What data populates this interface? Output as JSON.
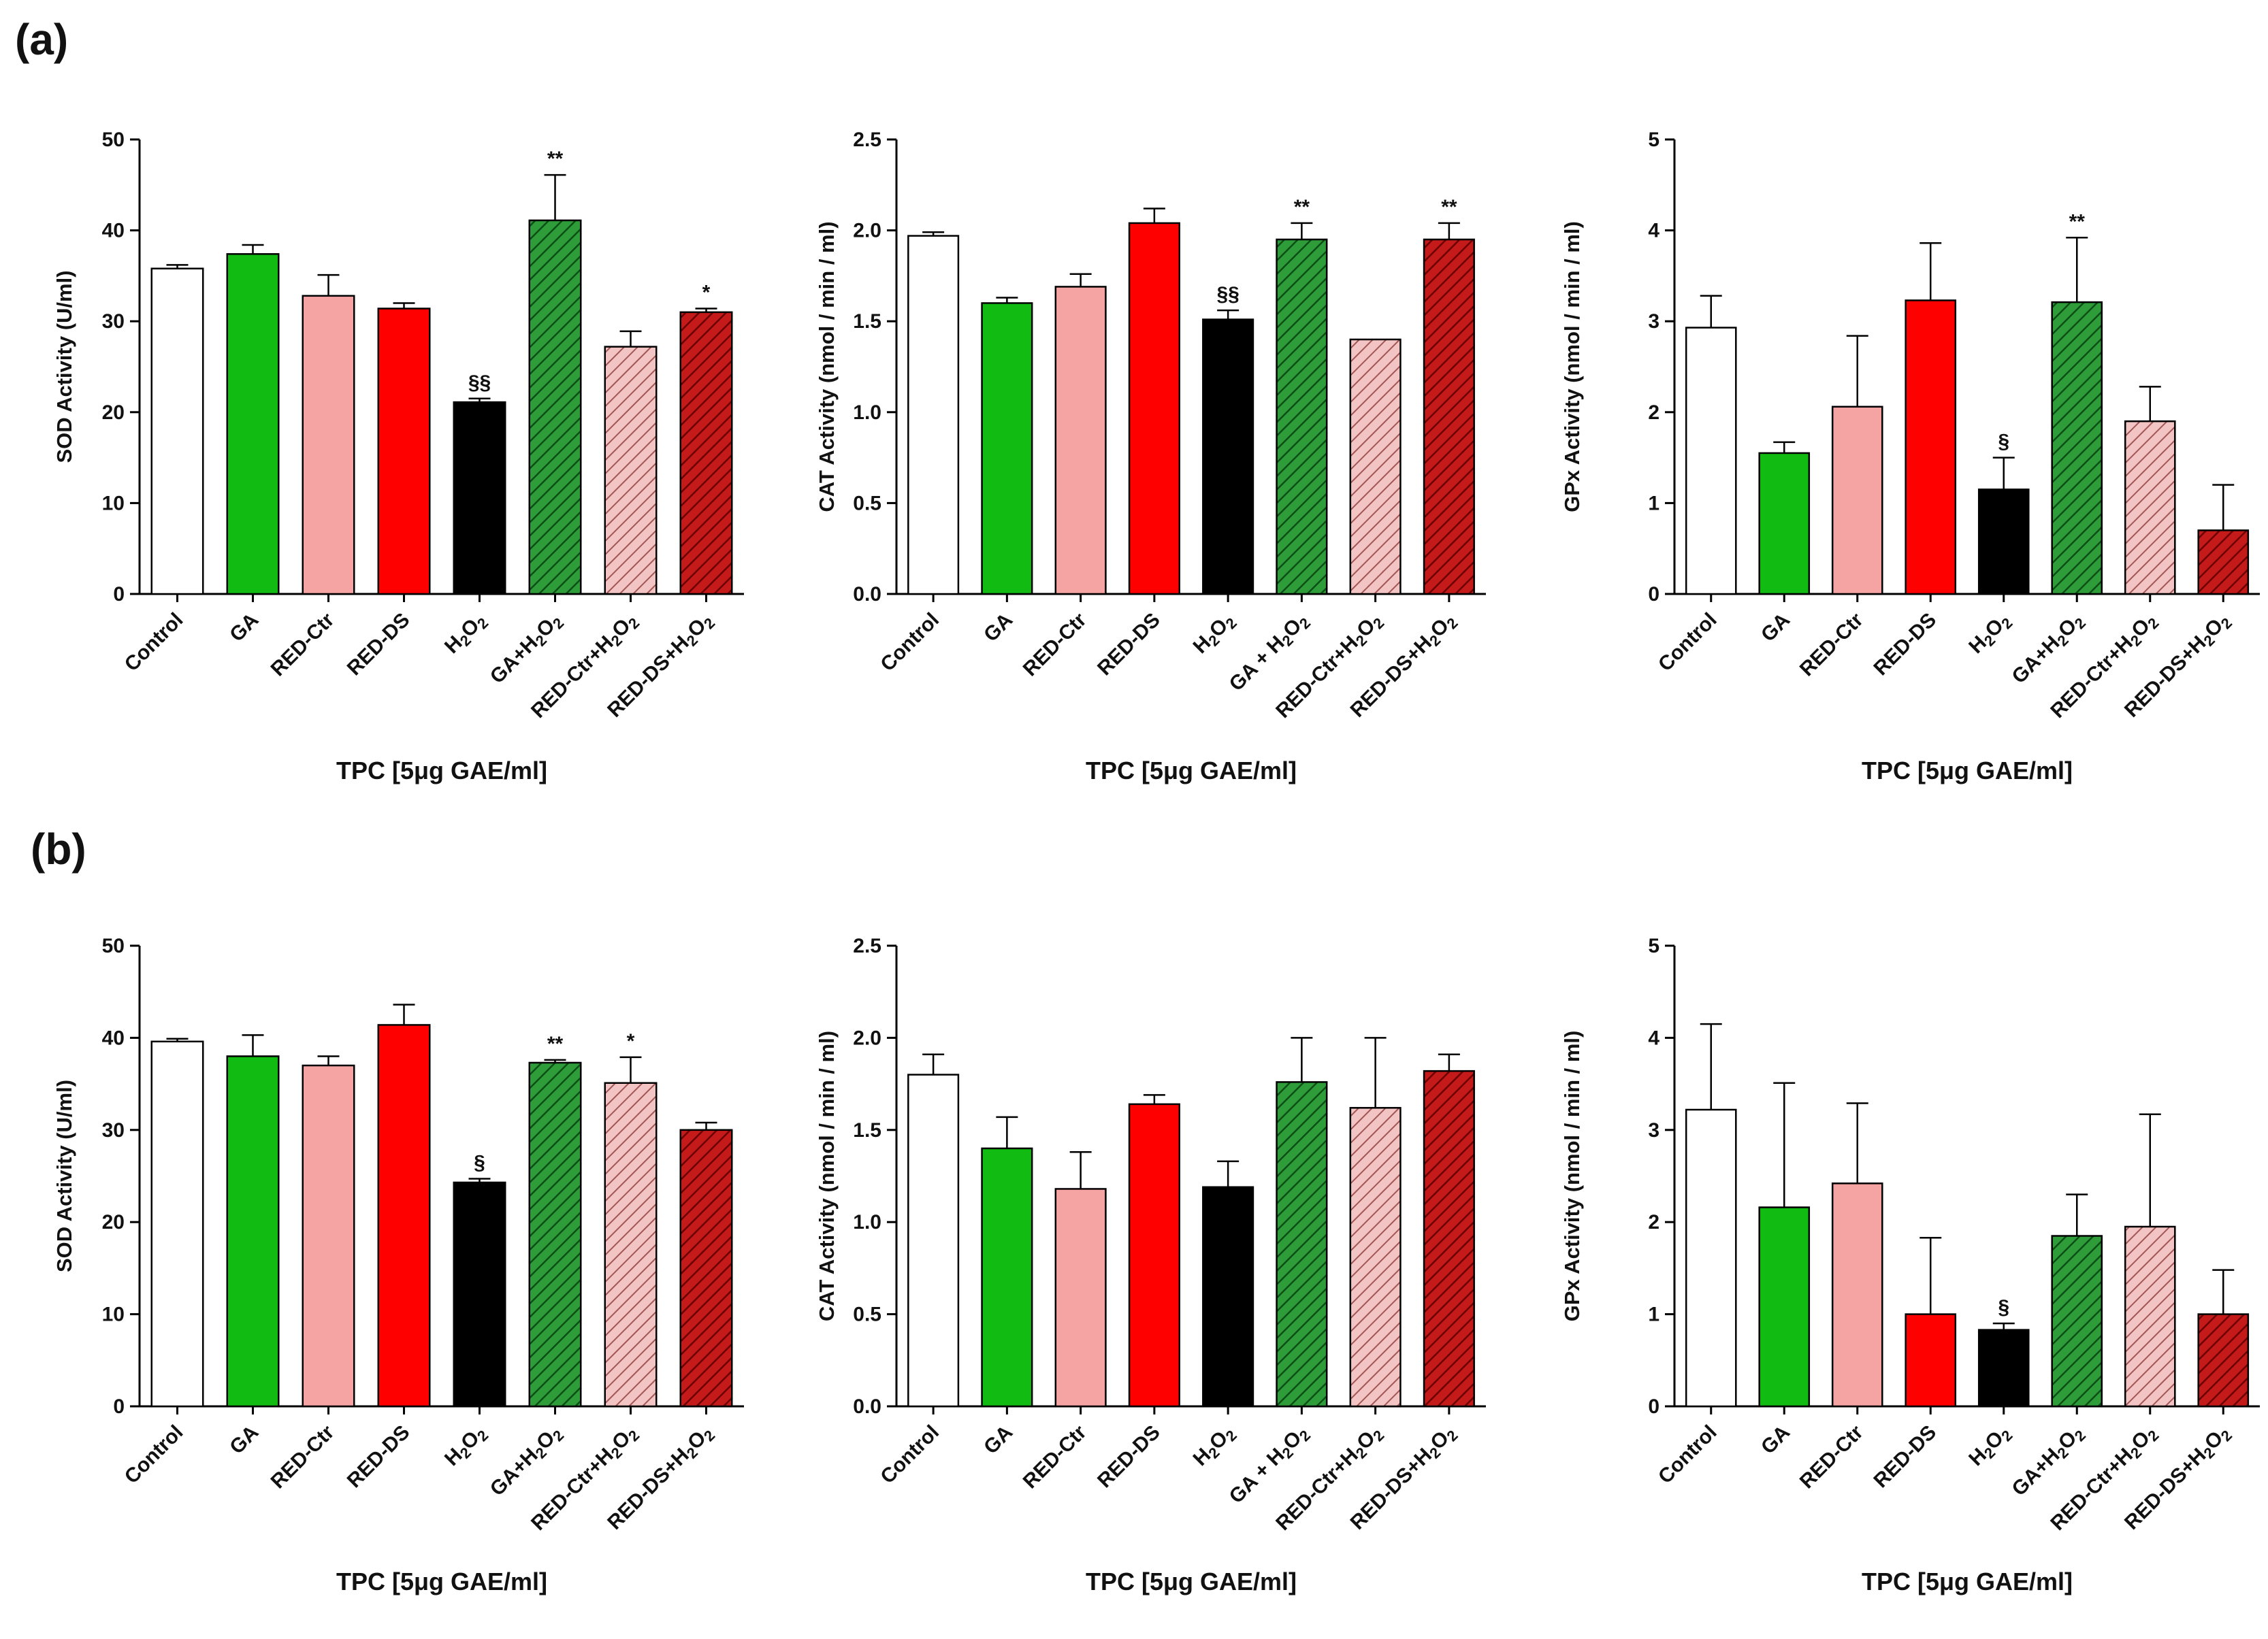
{
  "panel_labels": [
    "(a)",
    "(b)"
  ],
  "colors": {
    "white": "#ffffff",
    "green": "#11bb11",
    "pink": "#f5a3a3",
    "red": "#ff0000",
    "black": "#000000",
    "dark_green": "#1f8a2e",
    "dark_red": "#b20d0d",
    "hatch_pink": "#d69a9a"
  },
  "chart_data": [
    {
      "id": "a-sod",
      "type": "bar",
      "title": "",
      "row": "a",
      "col": 0,
      "ylabel": "SOD Activity (U/ml)",
      "xlabel": "TPC [5μg GAE/ml]",
      "ylim": [
        0,
        50
      ],
      "yticks": [
        0,
        10,
        20,
        30,
        40,
        50
      ],
      "categories": [
        "Control",
        "GA",
        "RED-Ctr",
        "RED-DS",
        "H2O2",
        "GA+H2O2",
        "RED-Ctr+H2O2",
        "RED-DS+H2O2"
      ],
      "values": [
        35.8,
        37.4,
        32.8,
        31.4,
        21.1,
        41.1,
        27.2,
        31.0
      ],
      "errors": [
        0.4,
        1.0,
        2.3,
        0.6,
        0.4,
        5.0,
        1.7,
        0.4
      ],
      "styles": [
        "white",
        "green",
        "pink",
        "red",
        "black",
        "dark_green",
        "hatch_pink",
        "dark_red"
      ],
      "annotations": [
        "",
        "",
        "",
        "",
        "§§",
        "**",
        "",
        "*"
      ]
    },
    {
      "id": "a-cat",
      "type": "bar",
      "row": "a",
      "col": 1,
      "ylabel": "CAT Activity (nmol / min / ml)",
      "xlabel": "TPC [5μg GAE/ml]",
      "ylim": [
        0,
        2.5
      ],
      "yticks": [
        0.0,
        0.5,
        1.0,
        1.5,
        2.0,
        2.5
      ],
      "ytick_labels": [
        "0.0",
        "0.5",
        "1.0",
        "1.5",
        "2.0",
        "2.5"
      ],
      "categories": [
        "Control",
        "GA",
        "RED-Ctr",
        "RED-DS",
        "H2O2",
        "GA + H2O2",
        "RED-Ctr+H2O2",
        "RED-DS+H2O2"
      ],
      "values": [
        1.97,
        1.6,
        1.69,
        2.04,
        1.51,
        1.95,
        1.4,
        1.95
      ],
      "errors": [
        0.02,
        0.03,
        0.07,
        0.08,
        0.05,
        0.09,
        0.0,
        0.09
      ],
      "styles": [
        "white",
        "green",
        "pink",
        "red",
        "black",
        "dark_green",
        "hatch_pink",
        "dark_red"
      ],
      "annotations": [
        "",
        "",
        "",
        "",
        "§§",
        "**",
        "",
        "**"
      ]
    },
    {
      "id": "a-gpx",
      "type": "bar",
      "row": "a",
      "col": 2,
      "ylabel": "GPx Activity (nmol / min / ml)",
      "xlabel": "TPC [5μg GAE/ml]",
      "ylim": [
        0,
        5
      ],
      "yticks": [
        0,
        1,
        2,
        3,
        4,
        5
      ],
      "categories": [
        "Control",
        "GA",
        "RED-Ctr",
        "RED-DS",
        "H2O2",
        "GA+H2O2",
        "RED-Ctr+H2O2",
        "RED-DS+H2O2"
      ],
      "values": [
        2.93,
        1.55,
        2.06,
        3.23,
        1.15,
        3.21,
        1.9,
        0.7
      ],
      "errors": [
        0.35,
        0.12,
        0.78,
        0.63,
        0.35,
        0.71,
        0.38,
        0.5
      ],
      "styles": [
        "white",
        "green",
        "pink",
        "red",
        "black",
        "dark_green",
        "hatch_pink",
        "dark_red"
      ],
      "annotations": [
        "",
        "",
        "",
        "",
        "§",
        "**",
        "",
        ""
      ]
    },
    {
      "id": "b-sod",
      "type": "bar",
      "row": "b",
      "col": 0,
      "ylabel": "SOD Activity (U/ml)",
      "xlabel": "TPC [5μg GAE/ml]",
      "ylim": [
        0,
        50
      ],
      "yticks": [
        0,
        10,
        20,
        30,
        40,
        50
      ],
      "categories": [
        "Control",
        "GA",
        "RED-Ctr",
        "RED-DS",
        "H2O2",
        "GA+H2O2",
        "RED-Ctr+H2O2",
        "RED-DS+H2O2"
      ],
      "values": [
        39.6,
        38.0,
        37.0,
        41.4,
        24.3,
        37.3,
        35.1,
        30.0
      ],
      "errors": [
        0.3,
        2.3,
        1.0,
        2.2,
        0.4,
        0.3,
        2.8,
        0.8
      ],
      "styles": [
        "white",
        "green",
        "pink",
        "red",
        "black",
        "dark_green",
        "hatch_pink",
        "dark_red"
      ],
      "annotations": [
        "",
        "",
        "",
        "",
        "§",
        "**",
        "*",
        ""
      ]
    },
    {
      "id": "b-cat",
      "type": "bar",
      "row": "b",
      "col": 1,
      "ylabel": "CAT Activity (nmol / min / ml)",
      "xlabel": "TPC [5μg GAE/ml]",
      "ylim": [
        0,
        2.5
      ],
      "yticks": [
        0.0,
        0.5,
        1.0,
        1.5,
        2.0,
        2.5
      ],
      "ytick_labels": [
        "0.0",
        "0.5",
        "1.0",
        "1.5",
        "2.0",
        "2.5"
      ],
      "categories": [
        "Control",
        "GA",
        "RED-Ctr",
        "RED-DS",
        "H2O2",
        "GA + H2O2",
        "RED-Ctr+H2O2",
        "RED-DS+H2O2"
      ],
      "values": [
        1.8,
        1.4,
        1.18,
        1.64,
        1.19,
        1.76,
        1.62,
        1.82
      ],
      "errors": [
        0.11,
        0.17,
        0.2,
        0.05,
        0.14,
        0.24,
        0.38,
        0.09
      ],
      "styles": [
        "white",
        "green",
        "pink",
        "red",
        "black",
        "dark_green",
        "hatch_pink",
        "dark_red"
      ],
      "annotations": [
        "",
        "",
        "",
        "",
        "",
        "",
        "",
        ""
      ]
    },
    {
      "id": "b-gpx",
      "type": "bar",
      "row": "b",
      "col": 2,
      "ylabel": "GPx Activity (nmol / min / ml)",
      "xlabel": "TPC [5μg GAE/ml]",
      "ylim": [
        0,
        5
      ],
      "yticks": [
        0,
        1,
        2,
        3,
        4,
        5
      ],
      "categories": [
        "Control",
        "GA",
        "RED-Ctr",
        "RED-DS",
        "H2O2",
        "GA+H2O2",
        "RED-Ctr+H2O2",
        "RED-DS+H2O2"
      ],
      "values": [
        3.22,
        2.16,
        2.42,
        1.0,
        0.83,
        1.85,
        1.95,
        1.0
      ],
      "errors": [
        0.93,
        1.35,
        0.87,
        0.83,
        0.07,
        0.45,
        1.22,
        0.48
      ],
      "styles": [
        "white",
        "green",
        "pink",
        "red",
        "black",
        "dark_green",
        "hatch_pink",
        "dark_red"
      ],
      "annotations": [
        "",
        "",
        "",
        "",
        "§",
        "",
        "",
        ""
      ]
    }
  ]
}
